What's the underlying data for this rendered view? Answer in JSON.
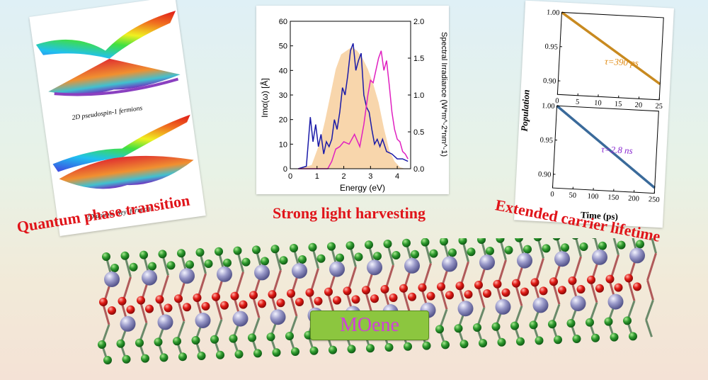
{
  "left_panel": {
    "caption_top": "2D pseudospin-1 fermions",
    "caption_bottom": "2D double Weyl fermions"
  },
  "middle_panel": {
    "chart_data": {
      "type": "line",
      "xlabel": "Energy (eV)",
      "ylabel_left": "Imα(ω) [Å]",
      "ylabel_right": "Spectral Irradiance (W*m^-2*nm^-1)",
      "xlim": [
        0,
        4.5
      ],
      "ylim_left": [
        0,
        60
      ],
      "ylim_right": [
        0,
        2.0
      ],
      "xticks": [
        "0",
        "1",
        "2",
        "3",
        "4"
      ],
      "yticks_left": [
        "0",
        "10",
        "20",
        "30",
        "40",
        "50",
        "60"
      ],
      "yticks_right": [
        "0.0",
        "0.5",
        "1.0",
        "1.5",
        "2.0"
      ],
      "series": [
        {
          "color": "#1a1aa8",
          "axis": "left",
          "x": [
            0.3,
            0.6,
            0.75,
            0.85,
            0.95,
            1.05,
            1.15,
            1.25,
            1.35,
            1.45,
            1.55,
            1.65,
            1.75,
            1.85,
            1.95,
            2.05,
            2.15,
            2.25,
            2.35,
            2.45,
            2.55,
            2.65,
            2.75,
            2.85,
            2.95,
            3.05,
            3.15,
            3.25,
            3.35,
            3.45,
            3.6,
            3.8,
            4.0,
            4.2,
            4.4
          ],
          "y": [
            0,
            1,
            21,
            11,
            18,
            9,
            14,
            6,
            11,
            9,
            12,
            20,
            16,
            23,
            33,
            30,
            38,
            48,
            51,
            40,
            44,
            47,
            30,
            25,
            23,
            16,
            10,
            12,
            9,
            12,
            7,
            6,
            4,
            4,
            3
          ]
        },
        {
          "color": "#e020c0",
          "axis": "left",
          "x": [
            0.3,
            1.0,
            1.4,
            1.55,
            1.7,
            1.85,
            2.0,
            2.2,
            2.4,
            2.6,
            2.75,
            2.9,
            3.0,
            3.1,
            3.2,
            3.3,
            3.4,
            3.5,
            3.6,
            3.7,
            3.8,
            3.9,
            4.0,
            4.1,
            4.2,
            4.3,
            4.4
          ],
          "y": [
            0,
            0,
            0,
            3,
            8,
            9,
            11,
            10,
            14,
            9,
            18,
            30,
            36,
            35,
            40,
            45,
            48,
            40,
            44,
            34,
            23,
            16,
            12,
            11,
            7,
            6,
            4
          ]
        },
        {
          "color": "#f5c890",
          "axis": "right",
          "fill": true,
          "x": [
            0.3,
            0.8,
            1.1,
            1.3,
            1.5,
            1.7,
            1.9,
            2.1,
            2.3,
            2.5,
            2.7,
            2.9,
            3.1,
            3.3,
            3.5,
            3.7,
            3.9,
            4.1,
            4.3
          ],
          "y": [
            0,
            0.05,
            0.35,
            0.65,
            1.0,
            1.35,
            1.55,
            1.6,
            1.65,
            1.6,
            1.5,
            1.35,
            1.15,
            0.9,
            0.55,
            0.25,
            0.1,
            0.02,
            0
          ]
        }
      ]
    }
  },
  "right_panel": {
    "chart_data": [
      {
        "type": "line",
        "xlim": [
          0,
          25
        ],
        "ylim": [
          0.88,
          1.0
        ],
        "xticks": [
          "0",
          "5",
          "10",
          "15",
          "20",
          "25"
        ],
        "yticks": [
          "0.90",
          "0.95",
          "1.00"
        ],
        "annotation": "τ=390 ps",
        "annotation_color": "#e08a12",
        "series": [
          {
            "color": "#c88a20",
            "x": [
              0,
              25
            ],
            "y": [
              1.0,
              0.903
            ]
          }
        ]
      },
      {
        "type": "line",
        "xlim": [
          0,
          250
        ],
        "ylim": [
          0.88,
          1.0
        ],
        "xticks": [
          "0",
          "50",
          "100",
          "150",
          "200",
          "250"
        ],
        "yticks": [
          "0.90",
          "0.95",
          "1.00"
        ],
        "annotation": "τ=2.8 ns",
        "annotation_color": "#8a2ad0",
        "series": [
          {
            "color": "#3a6a9a",
            "x": [
              0,
              250
            ],
            "y": [
              1.0,
              0.888
            ]
          }
        ]
      }
    ],
    "ylabel": "Population",
    "xlabel": "Time (ps)"
  },
  "headlines": {
    "left": "Quantum phase transition",
    "middle": "Strong light harvesting",
    "right": "Extended carrier lifetime"
  },
  "material_label": "MOene",
  "colors": {
    "headline": "#e0141a",
    "label_text": "#d040d8",
    "label_bg": "#8cc63f"
  }
}
